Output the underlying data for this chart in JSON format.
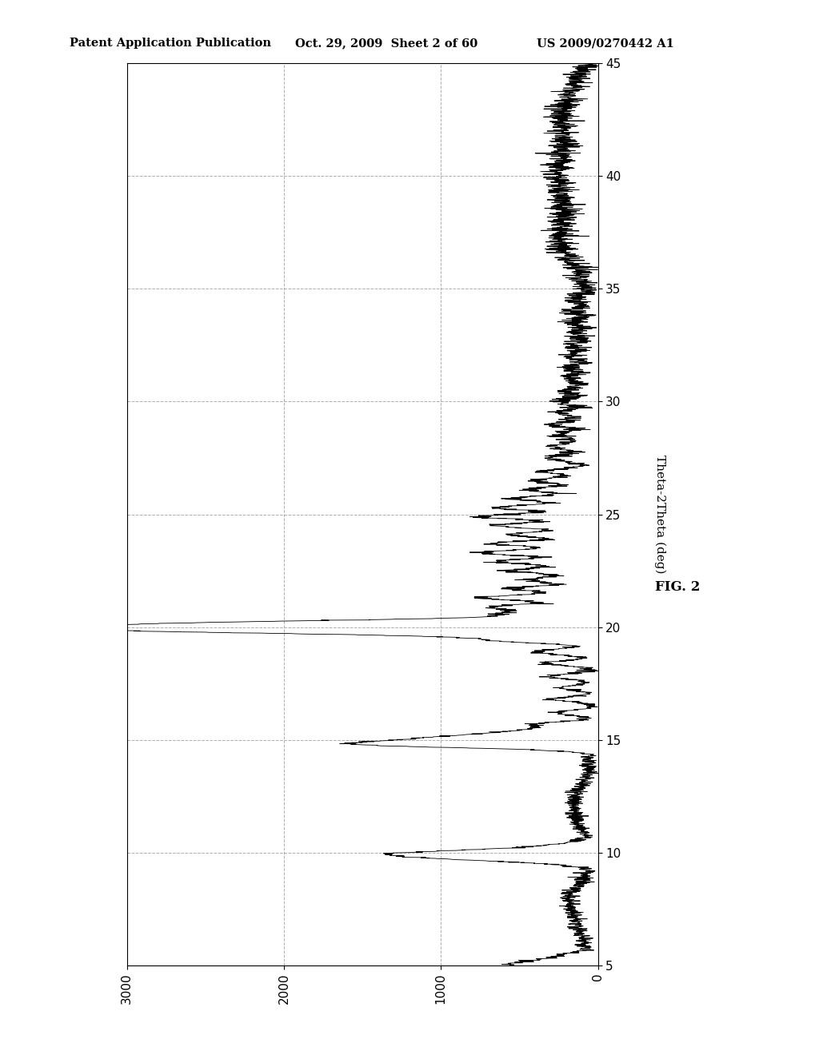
{
  "title_left": "Patent Application Publication",
  "title_mid": "Oct. 29, 2009  Sheet 2 of 60",
  "title_right": "US 2009/0270442 A1",
  "fig_label": "FIG. 2",
  "axis_label": "Theta-2Theta (deg)",
  "x_min": 5,
  "x_max": 45,
  "y_min": 0,
  "y_max": 3000,
  "x_ticks": [
    5,
    10,
    15,
    20,
    25,
    30,
    35,
    40,
    45
  ],
  "y_ticks": [
    0,
    1000,
    2000,
    3000
  ],
  "background_color": "#ffffff",
  "line_color": "#000000",
  "grid_color": "#999999"
}
